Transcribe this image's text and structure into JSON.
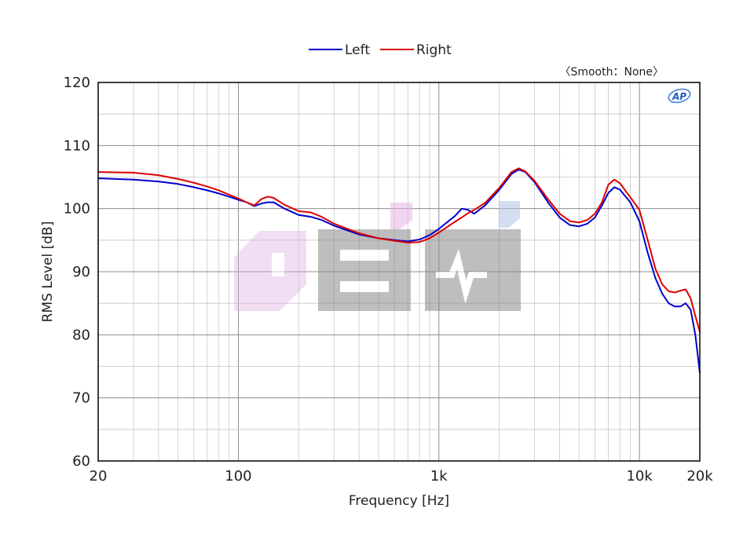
{
  "chart_data": {
    "type": "line",
    "title": "",
    "xlabel": "Frequency [Hz]",
    "ylabel": "RMS Level [dB]",
    "x_scale": "log",
    "xlim": [
      20,
      20000
    ],
    "ylim": [
      60,
      120
    ],
    "x_ticks": [
      {
        "value": 20,
        "label": "20"
      },
      {
        "value": 100,
        "label": "100"
      },
      {
        "value": 1000,
        "label": "1k"
      },
      {
        "value": 10000,
        "label": "10k"
      },
      {
        "value": 20000,
        "label": "20k"
      }
    ],
    "y_ticks": [
      {
        "value": 60,
        "label": "60"
      },
      {
        "value": 70,
        "label": "70"
      },
      {
        "value": 80,
        "label": "80"
      },
      {
        "value": 90,
        "label": "90"
      },
      {
        "value": 100,
        "label": "100"
      },
      {
        "value": 110,
        "label": "110"
      },
      {
        "value": 120,
        "label": "120"
      }
    ],
    "grid": true,
    "legend_position": "top-center",
    "annotation": "〈Smooth：None〉",
    "badge": "AP",
    "series": [
      {
        "name": "Left",
        "color": "#0000cc",
        "points": [
          [
            20,
            104.8
          ],
          [
            30,
            104.6
          ],
          [
            40,
            104.3
          ],
          [
            50,
            103.9
          ],
          [
            60,
            103.4
          ],
          [
            70,
            102.9
          ],
          [
            80,
            102.4
          ],
          [
            90,
            101.9
          ],
          [
            100,
            101.4
          ],
          [
            110,
            101.0
          ],
          [
            120,
            100.4
          ],
          [
            130,
            100.8
          ],
          [
            140,
            101.0
          ],
          [
            150,
            101.0
          ],
          [
            170,
            100.0
          ],
          [
            200,
            99.0
          ],
          [
            230,
            98.7
          ],
          [
            260,
            98.2
          ],
          [
            300,
            97.3
          ],
          [
            400,
            95.9
          ],
          [
            500,
            95.3
          ],
          [
            600,
            95.0
          ],
          [
            700,
            94.8
          ],
          [
            800,
            95.1
          ],
          [
            900,
            95.8
          ],
          [
            1000,
            96.8
          ],
          [
            1200,
            98.8
          ],
          [
            1300,
            100.0
          ],
          [
            1400,
            99.8
          ],
          [
            1500,
            99.2
          ],
          [
            1700,
            100.5
          ],
          [
            2000,
            103.0
          ],
          [
            2300,
            105.5
          ],
          [
            2500,
            106.2
          ],
          [
            2700,
            105.8
          ],
          [
            3000,
            104.2
          ],
          [
            3500,
            101.0
          ],
          [
            4000,
            98.6
          ],
          [
            4500,
            97.4
          ],
          [
            5000,
            97.2
          ],
          [
            5500,
            97.6
          ],
          [
            6000,
            98.6
          ],
          [
            6500,
            100.5
          ],
          [
            7000,
            102.5
          ],
          [
            7500,
            103.4
          ],
          [
            8000,
            103.0
          ],
          [
            9000,
            101.0
          ],
          [
            10000,
            98.0
          ],
          [
            11000,
            93.0
          ],
          [
            12000,
            89.0
          ],
          [
            13000,
            86.5
          ],
          [
            14000,
            85.0
          ],
          [
            15000,
            84.5
          ],
          [
            16000,
            84.5
          ],
          [
            17000,
            85.0
          ],
          [
            18000,
            84.0
          ],
          [
            19000,
            80.0
          ],
          [
            20000,
            74.0
          ]
        ]
      },
      {
        "name": "Right",
        "color": "#dd0000",
        "points": [
          [
            20,
            105.8
          ],
          [
            30,
            105.7
          ],
          [
            40,
            105.3
          ],
          [
            50,
            104.7
          ],
          [
            60,
            104.1
          ],
          [
            70,
            103.5
          ],
          [
            80,
            102.9
          ],
          [
            90,
            102.2
          ],
          [
            100,
            101.6
          ],
          [
            110,
            101.0
          ],
          [
            120,
            100.5
          ],
          [
            130,
            101.5
          ],
          [
            140,
            101.9
          ],
          [
            150,
            101.7
          ],
          [
            170,
            100.6
          ],
          [
            200,
            99.6
          ],
          [
            230,
            99.4
          ],
          [
            260,
            98.7
          ],
          [
            300,
            97.6
          ],
          [
            400,
            96.1
          ],
          [
            500,
            95.3
          ],
          [
            600,
            94.9
          ],
          [
            700,
            94.6
          ],
          [
            800,
            94.7
          ],
          [
            900,
            95.3
          ],
          [
            1000,
            96.2
          ],
          [
            1200,
            97.9
          ],
          [
            1300,
            98.6
          ],
          [
            1400,
            99.3
          ],
          [
            1500,
            99.8
          ],
          [
            1700,
            100.9
          ],
          [
            2000,
            103.3
          ],
          [
            2300,
            105.8
          ],
          [
            2500,
            106.4
          ],
          [
            2700,
            105.9
          ],
          [
            3000,
            104.4
          ],
          [
            3500,
            101.5
          ],
          [
            4000,
            99.2
          ],
          [
            4500,
            98.0
          ],
          [
            5000,
            97.8
          ],
          [
            5500,
            98.2
          ],
          [
            6000,
            99.2
          ],
          [
            6500,
            101.0
          ],
          [
            7000,
            103.8
          ],
          [
            7500,
            104.6
          ],
          [
            8000,
            104.0
          ],
          [
            9000,
            101.8
          ],
          [
            10000,
            99.8
          ],
          [
            11000,
            95.0
          ],
          [
            12000,
            90.5
          ],
          [
            13000,
            88.0
          ],
          [
            14000,
            86.9
          ],
          [
            15000,
            86.7
          ],
          [
            16000,
            87.0
          ],
          [
            17000,
            87.2
          ],
          [
            18000,
            85.8
          ],
          [
            19000,
            83.0
          ],
          [
            20000,
            80.5
          ]
        ]
      }
    ]
  }
}
